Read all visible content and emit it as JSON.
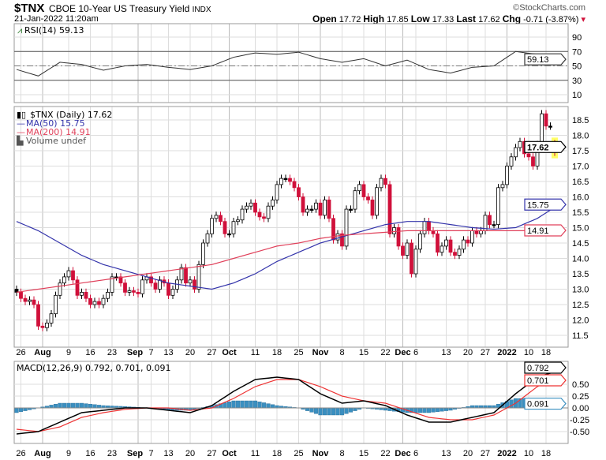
{
  "header": {
    "symbol": "$TNX",
    "name": "CBOE 10-Year US Treasury Yield",
    "exchange": "INDX",
    "datetime": "21-Jan-2022 11:20am",
    "watermark": "©StockCharts.com",
    "open_label": "Open",
    "open": "17.72",
    "high_label": "High",
    "high": "17.85",
    "low_label": "Low",
    "low": "17.33",
    "last_label": "Last",
    "last": "17.62",
    "chg_label": "Chg",
    "chg": "-0.71 (-3.87%)"
  },
  "chart_data": [
    {
      "type": "line",
      "title": "RSI(14) 59.13",
      "name": "RSI(14)",
      "value": "59.13",
      "yticks": [
        "90",
        "70",
        "50",
        "30",
        "10"
      ],
      "ylim": [
        0,
        100
      ],
      "values": [
        45,
        36,
        55,
        52,
        44,
        50,
        52,
        48,
        45,
        50,
        62,
        68,
        66,
        69,
        60,
        55,
        60,
        50,
        58,
        45,
        40,
        48,
        50,
        70,
        66,
        59.13
      ]
    },
    {
      "type": "candlestick",
      "title": "$TNX (Daily) 17.62",
      "legend": {
        "price": "$TNX (Daily) 17.62",
        "ma50": "MA(50) 15.75",
        "ma200": "MA(200) 14.91",
        "volume": "Volume undef"
      },
      "ylim": [
        11.2,
        18.9
      ],
      "yticks": [
        "18.5",
        "18.0",
        "17.5",
        "17.0",
        "16.5",
        "16.0",
        "15.5",
        "15.0",
        "14.5",
        "14.0",
        "13.5",
        "13.0",
        "12.5",
        "12.0",
        "11.5"
      ],
      "last_label": "17.62",
      "ma50_label": "15.75",
      "ma200_label": "14.91",
      "close": [
        12.9,
        12.7,
        12.6,
        12.65,
        12.5,
        11.8,
        11.75,
        11.9,
        12.2,
        12.8,
        13.2,
        13.4,
        13.6,
        13.3,
        12.8,
        12.9,
        12.7,
        12.5,
        12.6,
        12.5,
        12.7,
        12.9,
        13.4,
        13.4,
        13.2,
        12.9,
        12.95,
        12.9,
        12.85,
        13.3,
        13.4,
        13.2,
        13.0,
        13.3,
        13.2,
        12.8,
        13.0,
        13.3,
        13.7,
        13.2,
        13.3,
        13.0,
        13.8,
        14.5,
        14.8,
        15.3,
        15.4,
        15.2,
        14.8,
        14.8,
        15.2,
        15.25,
        15.6,
        15.7,
        15.8,
        15.5,
        15.35,
        15.3,
        15.7,
        15.9,
        16.4,
        16.6,
        16.6,
        16.5,
        16.3,
        16.0,
        15.5,
        15.6,
        15.6,
        15.8,
        15.4,
        15.9,
        15.3,
        14.6,
        14.8,
        14.4,
        15.6,
        15.6,
        16.2,
        16.4,
        16.0,
        15.9,
        15.4,
        16.3,
        16.6,
        16.4,
        14.8,
        15.0,
        14.4,
        14.1,
        14.5,
        13.5,
        14.3,
        14.8,
        15.2,
        14.9,
        14.8,
        14.2,
        14.4,
        14.6,
        14.2,
        14.1,
        14.3,
        14.6,
        14.5,
        14.9,
        14.8,
        14.9,
        15.4,
        15.1,
        15.1,
        16.3,
        16.4,
        17.0,
        17.3,
        17.6,
        17.8,
        17.4,
        17.3,
        17.0,
        17.7,
        18.7,
        18.3,
        18.3,
        17.62
      ],
      "last_ohlc": [
        17.72,
        17.85,
        17.33,
        17.62
      ],
      "ma50": [
        15.2,
        14.9,
        14.5,
        14.1,
        13.8,
        13.6,
        13.4,
        13.2,
        13.1,
        13.0,
        13.2,
        13.5,
        13.9,
        14.2,
        14.5,
        14.7,
        14.9,
        15.1,
        15.2,
        15.2,
        15.1,
        15.0,
        14.95,
        15.0,
        15.3,
        15.75
      ],
      "ma200": [
        12.9,
        13.0,
        13.1,
        13.2,
        13.3,
        13.4,
        13.5,
        13.6,
        13.7,
        13.8,
        14.0,
        14.2,
        14.4,
        14.5,
        14.65,
        14.75,
        14.8,
        14.85,
        14.9,
        14.9,
        14.9,
        14.9,
        14.9,
        14.9,
        14.9,
        14.91
      ]
    },
    {
      "type": "line",
      "title": "MACD(12,26,9) 0.792, 0.701, 0.091",
      "legend": {
        "name": "MACD(12,26,9)",
        "macd": "0.792",
        "signal": "0.701",
        "hist": "0.091"
      },
      "ylim": [
        -0.75,
        0.85
      ],
      "yticks": [
        "0.50",
        "0.25",
        "0.00",
        "-0.25",
        "-0.50"
      ],
      "macd": [
        -0.55,
        -0.5,
        -0.3,
        -0.1,
        -0.05,
        0.0,
        0.0,
        -0.05,
        -0.1,
        0.05,
        0.35,
        0.6,
        0.65,
        0.6,
        0.3,
        0.1,
        0.15,
        0.05,
        -0.15,
        -0.3,
        -0.3,
        -0.2,
        -0.1,
        0.3,
        0.65,
        0.792
      ],
      "signal": [
        -0.45,
        -0.5,
        -0.4,
        -0.2,
        -0.1,
        -0.03,
        0.0,
        0.0,
        -0.05,
        0.0,
        0.2,
        0.45,
        0.6,
        0.6,
        0.45,
        0.25,
        0.15,
        0.1,
        -0.05,
        -0.2,
        -0.25,
        -0.25,
        -0.15,
        0.1,
        0.45,
        0.701
      ]
    }
  ],
  "x_axis": {
    "labels": [
      {
        "t": "26",
        "i": 1
      },
      {
        "t": "Aug",
        "i": 6,
        "b": 1
      },
      {
        "t": "9",
        "i": 12
      },
      {
        "t": "16",
        "i": 17
      },
      {
        "t": "23",
        "i": 22
      },
      {
        "t": "Sep",
        "i": 28,
        "b": 1
      },
      {
        "t": "7",
        "i": 31
      },
      {
        "t": "13",
        "i": 35
      },
      {
        "t": "20",
        "i": 40
      },
      {
        "t": "27",
        "i": 45
      },
      {
        "t": "Oct",
        "i": 49,
        "b": 1
      },
      {
        "t": "11",
        "i": 55
      },
      {
        "t": "18",
        "i": 60
      },
      {
        "t": "25",
        "i": 65
      },
      {
        "t": "Nov",
        "i": 70,
        "b": 1
      },
      {
        "t": "8",
        "i": 75
      },
      {
        "t": "15",
        "i": 80
      },
      {
        "t": "22",
        "i": 85
      },
      {
        "t": "Dec",
        "i": 89,
        "b": 1
      },
      {
        "t": "6",
        "i": 92
      },
      {
        "t": "13",
        "i": 99
      },
      {
        "t": "20",
        "i": 104
      },
      {
        "t": "27",
        "i": 108
      },
      {
        "t": "2022",
        "i": 113,
        "b": 1
      },
      {
        "t": "10",
        "i": 118
      },
      {
        "t": "18",
        "i": 122
      }
    ]
  },
  "colors": {
    "up": "#000000",
    "down": "#d0103a",
    "ma50": "#3333aa",
    "ma200": "#e0405a",
    "macd": "#000000",
    "signal": "#ee3333",
    "hist": "#3a8fc0",
    "grid": "#dddddd"
  }
}
